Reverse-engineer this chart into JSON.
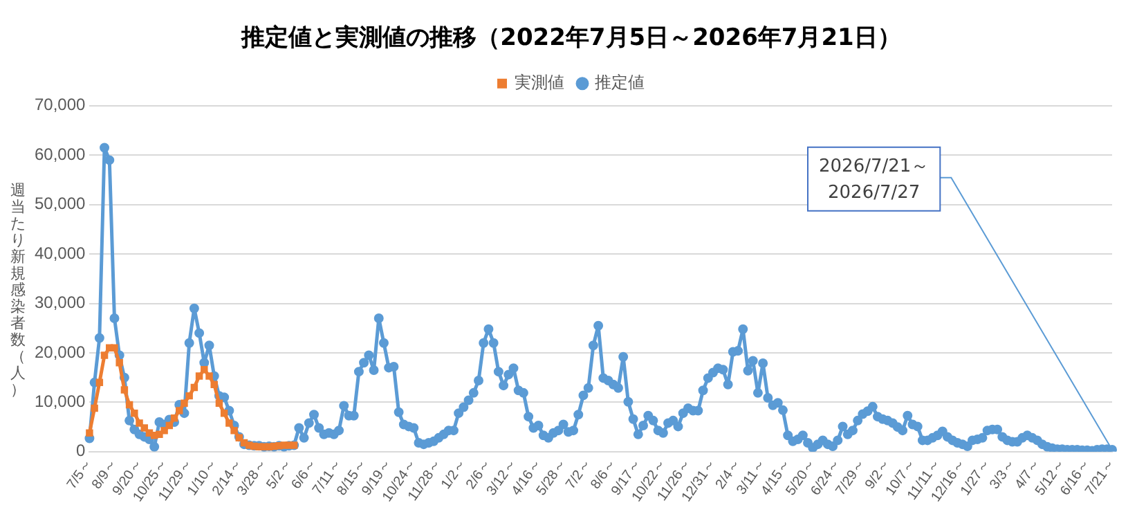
{
  "chart_data": {
    "type": "line",
    "title": "推定値と実測値の推移（2022年7月5日～2026年7月21日）",
    "ylabel": "週当たり新規感染者数（人）",
    "categories": [
      "7/5～",
      null,
      null,
      null,
      null,
      "8/9～",
      null,
      null,
      null,
      null,
      "9/20～",
      null,
      null,
      null,
      null,
      "10/25～",
      null,
      null,
      null,
      null,
      "11/29～",
      null,
      null,
      null,
      null,
      "1/10～",
      null,
      null,
      null,
      null,
      "2/14～",
      null,
      null,
      null,
      null,
      "3/28～",
      null,
      null,
      null,
      null,
      "5/2～",
      null,
      null,
      null,
      null,
      "6/6～",
      null,
      null,
      null,
      null,
      "7/11～",
      null,
      null,
      null,
      null,
      "8/15～",
      null,
      null,
      null,
      null,
      "9/19～",
      null,
      null,
      null,
      null,
      "10/24～",
      null,
      null,
      null,
      null,
      "11/28～",
      null,
      null,
      null,
      null,
      "1/2～",
      null,
      null,
      null,
      null,
      "2/6～",
      null,
      null,
      null,
      null,
      "3/12～",
      null,
      null,
      null,
      null,
      "4/16～",
      null,
      null,
      null,
      null,
      "5/28～",
      null,
      null,
      null,
      null,
      "7/2～",
      null,
      null,
      null,
      null,
      "8/6～",
      null,
      null,
      null,
      null,
      "9/17～",
      null,
      null,
      null,
      null,
      "10/22～",
      null,
      null,
      null,
      null,
      "11/26～",
      null,
      null,
      null,
      null,
      "12/31～",
      null,
      null,
      null,
      null,
      "2/4～",
      null,
      null,
      null,
      null,
      "3/11～",
      null,
      null,
      null,
      null,
      "4/15～",
      null,
      null,
      null,
      null,
      "5/20～",
      null,
      null,
      null,
      null,
      "6/24～",
      null,
      null,
      null,
      null,
      "7/29～",
      null,
      null,
      null,
      null,
      "9/2～",
      null,
      null,
      null,
      null,
      "10/7～",
      null,
      null,
      null,
      null,
      "11/11～",
      null,
      null,
      null,
      null,
      "12/16～",
      null,
      null,
      null,
      null,
      "1/27～",
      null,
      null,
      null,
      null,
      "3/3～",
      null,
      null,
      null,
      null,
      "4/7～",
      null,
      null,
      null,
      null,
      "5/12～",
      null,
      null,
      null,
      null,
      "6/16～",
      null,
      null,
      null,
      null,
      "7/21～"
    ],
    "series": [
      {
        "name": "推定値",
        "color": "#5b9bd5",
        "marker": "circle",
        "values": [
          2700,
          14000,
          23000,
          61500,
          59000,
          27000,
          19500,
          15000,
          6300,
          4500,
          3500,
          3000,
          2500,
          1000,
          6000,
          5500,
          6500,
          6000,
          9500,
          7800,
          22000,
          29000,
          24000,
          18000,
          21500,
          15300,
          11300,
          11000,
          8300,
          5300,
          3000,
          1500,
          1300,
          1200,
          1200,
          1000,
          1100,
          1000,
          1200,
          1000,
          1200,
          1300,
          4800,
          2800,
          5800,
          7500,
          4800,
          3500,
          3800,
          3500,
          4300,
          9300,
          7300,
          7300,
          16200,
          18000,
          19500,
          16500,
          27000,
          22000,
          17000,
          17200,
          8000,
          5500,
          5100,
          4800,
          1800,
          1500,
          1800,
          2100,
          2800,
          3500,
          4300,
          4300,
          7800,
          9000,
          10400,
          11900,
          14400,
          22000,
          24800,
          22000,
          16200,
          13400,
          15600,
          16900,
          12400,
          11900,
          7100,
          4800,
          5300,
          3300,
          2800,
          3800,
          4300,
          5500,
          4000,
          4300,
          7500,
          11400,
          12900,
          21500,
          25500,
          14900,
          14400,
          13600,
          12900,
          19200,
          10100,
          6600,
          3500,
          5300,
          7300,
          6300,
          4300,
          3800,
          5800,
          6300,
          5100,
          7800,
          8800,
          8300,
          8300,
          12400,
          14900,
          16000,
          16900,
          16600,
          13600,
          20200,
          20400,
          24800,
          16400,
          18400,
          11900,
          17900,
          10900,
          9400,
          9900,
          8400,
          3300,
          2100,
          2500,
          3300,
          1800,
          800,
          1500,
          2300,
          1500,
          1100,
          2300,
          5100,
          3500,
          4300,
          6300,
          7600,
          8200,
          9100,
          7100,
          6600,
          6300,
          5800,
          5000,
          4300,
          7300,
          5500,
          5100,
          2300,
          2300,
          2800,
          3300,
          4100,
          3000,
          2300,
          1800,
          1500,
          1100,
          2300,
          2500,
          2800,
          4300,
          4500,
          4500,
          3000,
          2300,
          2000,
          2000,
          2800,
          3300,
          2800,
          2300,
          1500,
          1000,
          700,
          500,
          500,
          400,
          400,
          400,
          300,
          300,
          200,
          400,
          500,
          500,
          400
        ]
      },
      {
        "name": "実測値",
        "color": "#ed7d31",
        "marker": "square",
        "values": [
          3800,
          8800,
          14000,
          19500,
          21000,
          21000,
          18000,
          12500,
          9500,
          7800,
          5800,
          4800,
          3800,
          3300,
          3500,
          4300,
          5300,
          6800,
          8300,
          9800,
          11300,
          13000,
          15300,
          16600,
          15300,
          13600,
          9800,
          7800,
          5800,
          4300,
          2800,
          1800,
          1300,
          1100,
          1000,
          1000,
          1000,
          1100,
          1200,
          1300,
          1300,
          1300,
          null,
          null,
          null,
          null,
          null,
          null,
          null,
          null,
          null,
          null,
          null,
          null,
          null,
          null,
          null,
          null,
          null,
          null,
          null,
          null,
          null,
          null,
          null,
          null,
          null,
          null,
          null,
          null,
          null,
          null,
          null,
          null,
          null,
          null,
          null,
          null,
          null,
          null,
          null,
          null,
          null,
          null,
          null,
          null,
          null,
          null,
          null,
          null,
          null,
          null,
          null,
          null,
          null,
          null,
          null,
          null,
          null,
          null,
          null,
          null,
          null,
          null,
          null,
          null,
          null,
          null,
          null,
          null,
          null,
          null,
          null,
          null,
          null,
          null,
          null,
          null,
          null,
          null,
          null,
          null,
          null,
          null,
          null,
          null,
          null,
          null,
          null,
          null,
          null,
          null,
          null,
          null,
          null,
          null,
          null,
          null,
          null,
          null,
          null,
          null,
          null,
          null,
          null,
          null,
          null,
          null,
          null,
          null,
          null,
          null,
          null,
          null,
          null,
          null,
          null,
          null,
          null,
          null,
          null,
          null,
          null,
          null,
          null,
          null,
          null,
          null,
          null,
          null,
          null,
          null,
          null,
          null,
          null,
          null,
          null,
          null,
          null,
          null,
          null,
          null,
          null,
          null,
          null,
          null,
          null,
          null,
          null,
          null,
          null,
          null,
          null,
          null,
          null,
          null,
          null,
          null,
          null,
          null,
          null,
          null,
          null,
          null,
          null,
          null
        ]
      }
    ],
    "ylim": [
      0,
      70000
    ],
    "yticks": [
      {
        "value": 0,
        "label": "0"
      },
      {
        "value": 10000,
        "label": "10,000"
      },
      {
        "value": 20000,
        "label": "20,000"
      },
      {
        "value": 30000,
        "label": "30,000"
      },
      {
        "value": 40000,
        "label": "40,000"
      },
      {
        "value": 50000,
        "label": "50,000"
      },
      {
        "value": 60000,
        "label": "60,000"
      },
      {
        "value": 70000,
        "label": "70,000"
      }
    ],
    "grid": "y",
    "legend": "top",
    "line_style": "solid",
    "annotations": [
      {
        "text": "2026/7/21～\n2026/7/27",
        "x": "7/21～",
        "y": 400
      }
    ]
  }
}
